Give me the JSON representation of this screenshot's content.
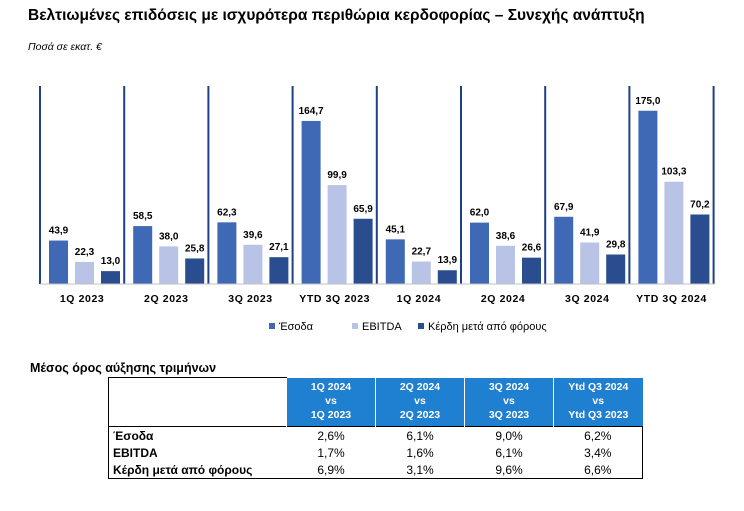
{
  "title": "Βελτιωμένες επιδόσεις με ισχυρότερα περιθώρια κερδοφορίας – Συνεχής ανάπτυξη",
  "unit_note": "Ποσά σε εκατ. €",
  "colors": {
    "revenue": "#3f68b5",
    "ebitda": "#b9c3e6",
    "net_profit": "#2a4d8f",
    "separator": "#1f3f86",
    "table_header": "#1f7fd0"
  },
  "chart_data": {
    "type": "bar",
    "categories": [
      "1Q 2023",
      "2Q 2023",
      "3Q 2023",
      "YTD 3Q 2023",
      "1Q 2024",
      "2Q 2024",
      "3Q 2024",
      "YTD 3Q 2024"
    ],
    "series": [
      {
        "name": "Έσοδα",
        "values": [
          43.9,
          58.5,
          62.3,
          164.7,
          45.1,
          62.0,
          67.9,
          175.0
        ],
        "labels": [
          "43,9",
          "58,5",
          "62,3",
          "164,7",
          "45,1",
          "62,0",
          "67,9",
          "175,0"
        ]
      },
      {
        "name": "EBITDA",
        "values": [
          22.3,
          38.0,
          39.6,
          99.9,
          22.7,
          38.6,
          41.9,
          103.3
        ],
        "labels": [
          "22,3",
          "38,0",
          "39,6",
          "99,9",
          "22,7",
          "38,6",
          "41,9",
          "103,3"
        ]
      },
      {
        "name": "Κέρδη μετά από φόρους",
        "values": [
          13.0,
          25.8,
          27.1,
          65.9,
          13.9,
          26.6,
          29.8,
          70.2
        ],
        "labels": [
          "13,0",
          "25,8",
          "27,1",
          "65,9",
          "13,9",
          "26,6",
          "29,8",
          "70,2"
        ]
      }
    ],
    "grid": false,
    "legend_position": "bottom"
  },
  "growth": {
    "title": "Μέσος όρος αύξησης τριμήνων",
    "headers": [
      [
        "1Q 2024",
        "vs",
        "1Q 2023"
      ],
      [
        "2Q 2024",
        "vs",
        "2Q 2023"
      ],
      [
        "3Q 2024",
        "vs",
        "3Q 2023"
      ],
      [
        "Ytd Q3 2024",
        "vs",
        "Ytd Q3 2023"
      ]
    ],
    "rows": [
      {
        "label": "Έσοδα",
        "values": [
          "2,6%",
          "6,1%",
          "9,0%",
          "6,2%"
        ]
      },
      {
        "label": "EBITDA",
        "values": [
          "1,7%",
          "1,6%",
          "6,1%",
          "3,4%"
        ]
      },
      {
        "label": "Κέρδη μετά από φόρους",
        "values": [
          "6,9%",
          "3,1%",
          "9,6%",
          "6,6%"
        ]
      }
    ]
  }
}
